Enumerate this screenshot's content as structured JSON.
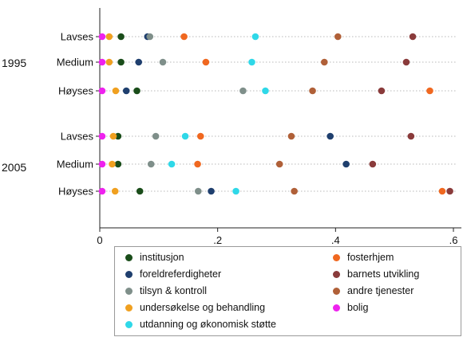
{
  "chart_data": {
    "type": "scatter",
    "xlim": [
      0,
      0.6
    ],
    "xticks": [
      {
        "value": 0,
        "label": "0"
      },
      {
        "value": 0.2,
        "label": ".2"
      },
      {
        "value": 0.4,
        "label": ".4"
      },
      {
        "value": 0.6,
        "label": ".6"
      }
    ],
    "grid": "dotted row guides",
    "legend_position": "bottom",
    "groups": [
      {
        "label": "1995",
        "rows": [
          "Lavses",
          "Medium",
          "Høyses"
        ]
      },
      {
        "label": "2005",
        "rows": [
          "Lavses",
          "Medium",
          "Høyses"
        ]
      }
    ],
    "series": [
      {
        "name": "institusjon",
        "color": "#1a4d1a",
        "values": [
          [
            0.036,
            0.036,
            0.063
          ],
          [
            0.031,
            0.031,
            0.068
          ]
        ]
      },
      {
        "name": "foreldreferdigheter",
        "color": "#1f3f6e",
        "values": [
          [
            0.081,
            0.066,
            0.045
          ],
          [
            0.391,
            0.418,
            0.189
          ]
        ]
      },
      {
        "name": "tilsyn & kontroll",
        "color": "#7f8f8a",
        "values": [
          [
            0.085,
            0.107,
            0.243
          ],
          [
            0.095,
            0.087,
            0.167
          ]
        ]
      },
      {
        "name": "undersøkelse og behandling",
        "color": "#f0a020",
        "values": [
          [
            0.016,
            0.016,
            0.027
          ],
          [
            0.023,
            0.021,
            0.026
          ]
        ]
      },
      {
        "name": "utdanning og økonomisk støtte",
        "color": "#2fd8e8",
        "values": [
          [
            0.264,
            0.258,
            0.281
          ],
          [
            0.145,
            0.122,
            0.231
          ]
        ]
      },
      {
        "name": "fosterhjem",
        "color": "#f06820",
        "values": [
          [
            0.143,
            0.18,
            0.56
          ],
          [
            0.171,
            0.166,
            0.581
          ]
        ]
      },
      {
        "name": "barnets utvikling",
        "color": "#8a3b3b",
        "values": [
          [
            0.531,
            0.52,
            0.478
          ],
          [
            0.528,
            0.463,
            0.594
          ]
        ]
      },
      {
        "name": "andre tjenester",
        "color": "#b06038",
        "values": [
          [
            0.404,
            0.381,
            0.361
          ],
          [
            0.325,
            0.305,
            0.33
          ]
        ]
      },
      {
        "name": "bolig",
        "color": "#ee22ee",
        "values": [
          [
            0.004,
            0.004,
            0.004
          ],
          [
            0.004,
            0.004,
            0.004
          ]
        ]
      }
    ]
  }
}
